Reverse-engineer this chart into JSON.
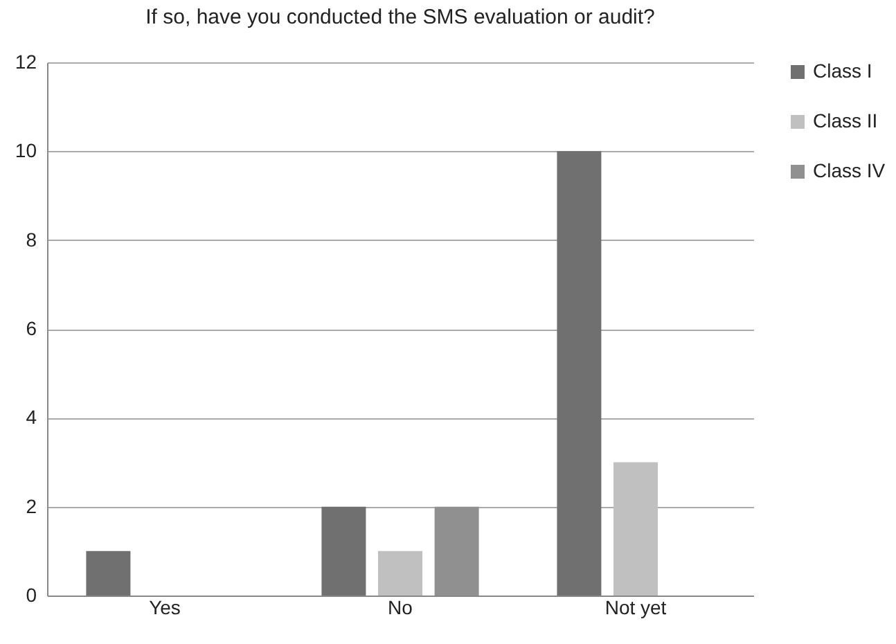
{
  "chart_data": {
    "type": "bar",
    "title": "If so, have you conducted the SMS evaluation or audit?",
    "categories": [
      "Yes",
      "No",
      "Not yet"
    ],
    "series": [
      {
        "name": "Class I",
        "color": "#707070",
        "values": [
          1,
          2,
          10
        ]
      },
      {
        "name": "Class II",
        "color": "#c0c0c0",
        "values": [
          0,
          1,
          3
        ]
      },
      {
        "name": "Class IV",
        "color": "#909090",
        "values": [
          0,
          2,
          0
        ]
      }
    ],
    "ylim": [
      0,
      12
    ],
    "yticks": [
      0,
      2,
      4,
      6,
      8,
      10,
      12
    ],
    "grid": "y",
    "legend": "right"
  }
}
